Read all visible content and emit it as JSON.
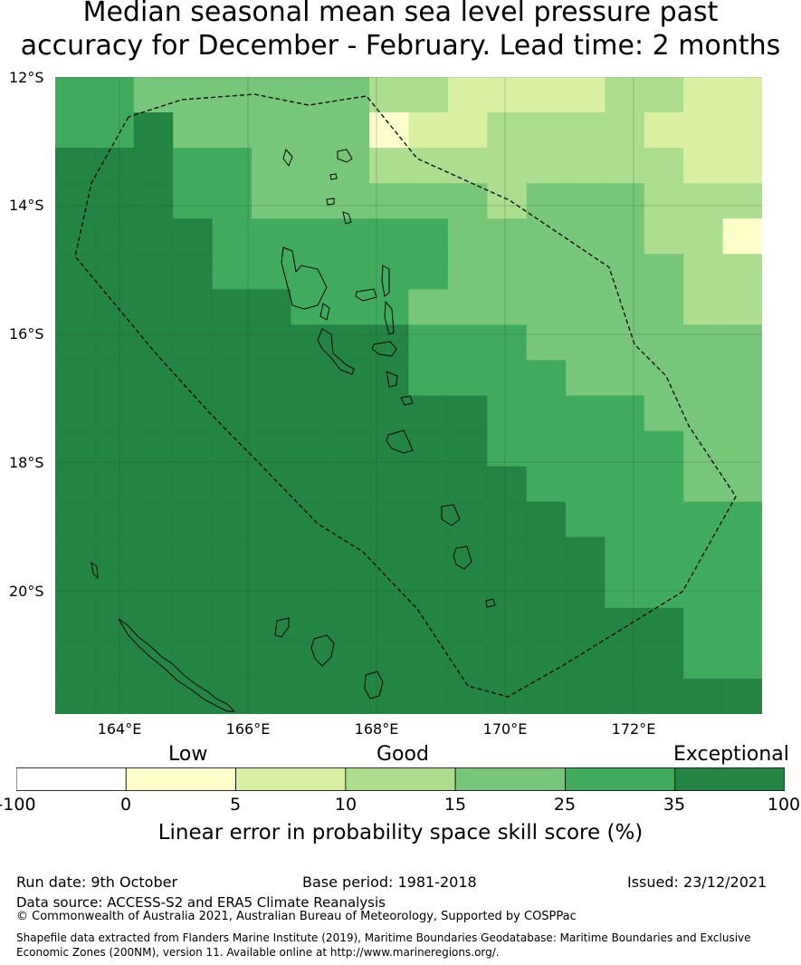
{
  "title": {
    "line1": "Median seasonal mean sea level pressure past",
    "line2": "accuracy for December - February. Lead time: 2 months"
  },
  "map": {
    "lat_labels": [
      "12°S",
      "14°S",
      "16°S",
      "18°S",
      "20°S"
    ],
    "lon_labels": [
      "164°E",
      "166°E",
      "168°E",
      "170°E",
      "172°E"
    ],
    "boundary": "dashed EEZ outline",
    "colors": {
      "c0": "#ffffcc",
      "c1": "#d9f0a3",
      "c2": "#addd8e",
      "c3": "#78c679",
      "c4": "#41ab5d",
      "c5": "#238443"
    }
  },
  "legend": {
    "categories": [
      "Low",
      "Good",
      "Exceptional"
    ],
    "ticks": [
      "-100",
      "0",
      "5",
      "10",
      "15",
      "25",
      "35",
      "100"
    ],
    "colors": [
      "#ffffff",
      "#ffffcc",
      "#d9f0a3",
      "#addd8e",
      "#78c679",
      "#41ab5d",
      "#238443"
    ],
    "label": "Linear error in probability space skill score (%)"
  },
  "footer": {
    "run_date": "Run date: 9th October",
    "base_period": "Base period: 1981-2018",
    "issued": "Issued: 23/12/2021",
    "data_source": "Data source: ACCESS-S2 and ERA5 Climate Reanalysis",
    "copyright": "© Commonwealth of Australia 2021, Australian Bureau of Meteorology, Supported by COSPPac",
    "shapefile": "Shapefile data extracted from Flanders Marine Institute (2019), Maritime Boundaries Geodatabase: Maritime Boundaries and Exclusive Economic Zones (200NM), version 11. Available online at http://www.marineregions.org/."
  }
}
